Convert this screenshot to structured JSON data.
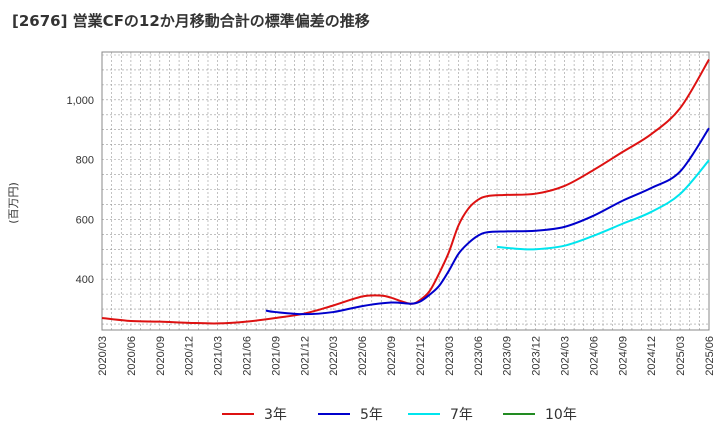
{
  "title": "[2676]  営業CFの12か月移動合計の標準偏差の推移",
  "chart_data": {
    "type": "line",
    "ylabel": "(百万円)",
    "ylim": [
      230,
      1160
    ],
    "yticks": [
      400,
      600,
      800,
      "1,000"
    ],
    "yticks_values": [
      400,
      600,
      800,
      1000
    ],
    "x": [
      "2020/03",
      "2020/06",
      "2020/09",
      "2020/12",
      "2021/03",
      "2021/06",
      "2021/09",
      "2021/12",
      "2022/03",
      "2022/06",
      "2022/09",
      "2022/12",
      "2023/03",
      "2023/06",
      "2023/09",
      "2023/12",
      "2024/03",
      "2024/06",
      "2024/09",
      "2024/12",
      "2025/03",
      "2025/06"
    ],
    "grid": true,
    "legend_position": "bottom",
    "series": [
      {
        "name": "3年",
        "color": "#dd1111",
        "points": [
          [
            "2020/03",
            270
          ],
          [
            "2020/06",
            260
          ],
          [
            "2020/09",
            258
          ],
          [
            "2020/12",
            254
          ],
          [
            "2021/03",
            252
          ],
          [
            "2021/06",
            258
          ],
          [
            "2021/09",
            270
          ],
          [
            "2021/12",
            285
          ],
          [
            "2022/03",
            312
          ],
          [
            "2022/06",
            342
          ],
          [
            "2022/08",
            345
          ],
          [
            "2022/09",
            338
          ],
          [
            "2022/11",
            318
          ],
          [
            "2022/12",
            330
          ],
          [
            "2023/01",
            360
          ],
          [
            "2023/02",
            420
          ],
          [
            "2023/03",
            490
          ],
          [
            "2023/04",
            580
          ],
          [
            "2023/05",
            635
          ],
          [
            "2023/06",
            665
          ],
          [
            "2023/07",
            678
          ],
          [
            "2023/09",
            682
          ],
          [
            "2023/12",
            686
          ],
          [
            "2024/03",
            712
          ],
          [
            "2024/06",
            765
          ],
          [
            "2024/09",
            825
          ],
          [
            "2024/12",
            885
          ],
          [
            "2025/03",
            972
          ],
          [
            "2025/06",
            1135
          ]
        ]
      },
      {
        "name": "5年",
        "color": "#0000cc",
        "points": [
          [
            "2021/08",
            295
          ],
          [
            "2021/09",
            290
          ],
          [
            "2021/12",
            283
          ],
          [
            "2022/03",
            290
          ],
          [
            "2022/06",
            310
          ],
          [
            "2022/09",
            322
          ],
          [
            "2022/11",
            318
          ],
          [
            "2022/12",
            325
          ],
          [
            "2023/01",
            348
          ],
          [
            "2023/02",
            378
          ],
          [
            "2023/03",
            428
          ],
          [
            "2023/04",
            485
          ],
          [
            "2023/05",
            520
          ],
          [
            "2023/06",
            545
          ],
          [
            "2023/07",
            557
          ],
          [
            "2023/09",
            560
          ],
          [
            "2023/12",
            562
          ],
          [
            "2024/03",
            575
          ],
          [
            "2024/06",
            612
          ],
          [
            "2024/09",
            662
          ],
          [
            "2024/12",
            705
          ],
          [
            "2025/03",
            760
          ],
          [
            "2025/06",
            905
          ]
        ]
      },
      {
        "name": "7年",
        "color": "#00e5ee",
        "points": [
          [
            "2023/08",
            508
          ],
          [
            "2023/10",
            502
          ],
          [
            "2023/12",
            500
          ],
          [
            "2024/03",
            512
          ],
          [
            "2024/06",
            545
          ],
          [
            "2024/09",
            585
          ],
          [
            "2024/12",
            625
          ],
          [
            "2025/03",
            685
          ],
          [
            "2025/06",
            798
          ]
        ]
      },
      {
        "name": "10年",
        "color": "#228b22",
        "points": []
      }
    ]
  }
}
